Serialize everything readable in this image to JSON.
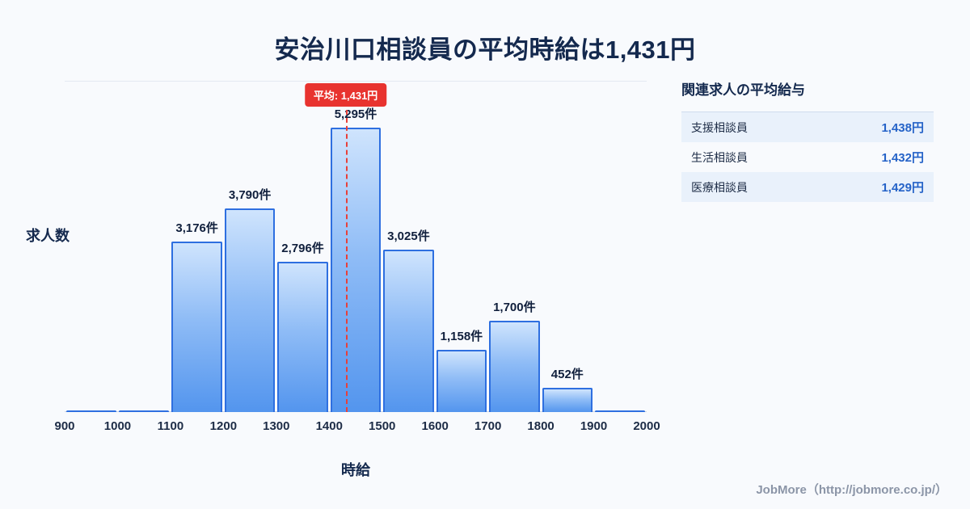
{
  "title": "安治川口相談員の平均時給は1,431円",
  "chart_data": {
    "type": "bar",
    "subtype": "histogram",
    "title": "安治川口相談員の平均時給は1,431円",
    "xlabel": "時給",
    "ylabel": "求人数",
    "bin_edges": [
      900,
      1000,
      1100,
      1200,
      1300,
      1400,
      1500,
      1600,
      1700,
      1800,
      1900,
      2000
    ],
    "values": [
      30,
      30,
      3176,
      3790,
      2796,
      5295,
      3025,
      1158,
      1700,
      452,
      30
    ],
    "bar_labels": [
      "",
      "",
      "3,176件",
      "3,790件",
      "2,796件",
      "5,295件",
      "3,025件",
      "1,158件",
      "1,700件",
      "452件",
      ""
    ],
    "xlim": [
      900,
      2000
    ],
    "grid": false,
    "average_line": {
      "value": 1431,
      "label": "平均: 1,431円"
    },
    "colors": {
      "bar_fill_top": "#cfe4fd",
      "bar_fill_bottom": "#5395ee",
      "bar_border": "#2e6fe0",
      "average_line": "#e8403a",
      "average_badge_bg": "#e8332f",
      "title_text": "#14294e",
      "value_accent": "#2563c8",
      "background": "#f8fafd"
    }
  },
  "side_panel": {
    "title": "関連求人の平均給与",
    "rows": [
      {
        "label": "支援相談員",
        "value": "1,438円"
      },
      {
        "label": "生活相談員",
        "value": "1,432円"
      },
      {
        "label": "医療相談員",
        "value": "1,429円"
      }
    ]
  },
  "footer": {
    "text": "JobMore（http://jobmore.co.jp/）"
  }
}
